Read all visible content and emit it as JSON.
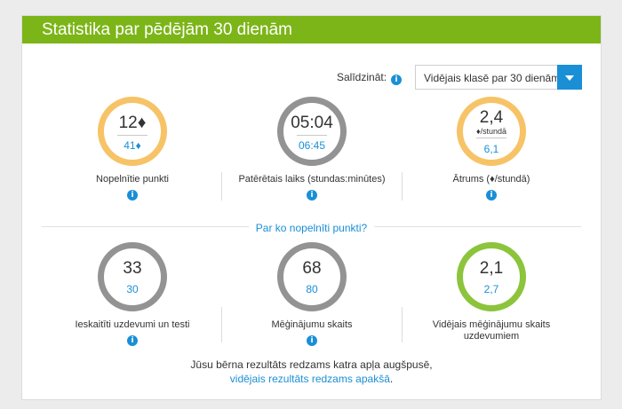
{
  "header": {
    "title": "Statistika par pēdējām 30 dienām"
  },
  "compare": {
    "label": "Salīdzināt:",
    "selected": "Vidējais klasē par 30 dienām (",
    "info_icon": "info-icon"
  },
  "stats_top": [
    {
      "main": "12♦",
      "unit": "",
      "compare": "41♦",
      "label": "Nopelnītie punkti",
      "ring_color": "#f7c367"
    },
    {
      "main": "05:04",
      "unit": "",
      "compare": "06:45",
      "label": "Patērētais laiks (stundas:minūtes)",
      "ring_color": "#939393"
    },
    {
      "main": "2,4",
      "unit": "♦/stundā",
      "compare": "6,1",
      "label": "Ātrums (♦/stundā)",
      "ring_color": "#f7c367"
    }
  ],
  "divider": {
    "link": "Par ko nopelnīti punkti?"
  },
  "stats_bottom": [
    {
      "main": "33",
      "compare": "30",
      "label": "Ieskaitīti uzdevumi un testi",
      "ring_color": "#939393"
    },
    {
      "main": "68",
      "compare": "80",
      "label": "Mēģinājumu skaits",
      "ring_color": "#939393"
    },
    {
      "main": "2,1",
      "compare": "2,7",
      "label_line1": "Vidējais mēģinājumu skaits",
      "label_line2": "uzdevumiem",
      "ring_color": "#8cc43c"
    }
  ],
  "footer": {
    "line1": "Jūsu bērna rezultāts redzams katra apļa augšpusē,",
    "line2": "vidējais rezultāts redzams apakšā",
    "period": "."
  }
}
